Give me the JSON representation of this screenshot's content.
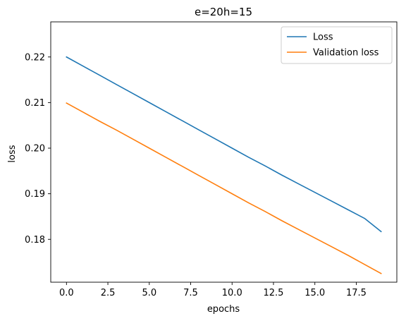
{
  "chart_data": {
    "type": "line",
    "title": "e=20h=15",
    "xlabel": "epochs",
    "ylabel": "loss",
    "xlim": [
      -0.95,
      19.95
    ],
    "ylim": [
      0.1706,
      0.2277
    ],
    "xticks": [
      0.0,
      2.5,
      5.0,
      7.5,
      10.0,
      12.5,
      15.0,
      17.5
    ],
    "xtick_labels": [
      "0.0",
      "2.5",
      "5.0",
      "7.5",
      "10.0",
      "12.5",
      "15.0",
      "17.5"
    ],
    "yticks": [
      0.18,
      0.19,
      0.2,
      0.21,
      0.22
    ],
    "ytick_labels": [
      "0.18",
      "0.19",
      "0.20",
      "0.21",
      "0.22"
    ],
    "grid": false,
    "legend_position": "top-right",
    "x": [
      0,
      1,
      2,
      3,
      4,
      5,
      6,
      7,
      8,
      9,
      10,
      11,
      12,
      13,
      14,
      15,
      16,
      17,
      18,
      19
    ],
    "series": [
      {
        "name": "Loss",
        "color": "#1f77b4",
        "values": [
          0.22,
          0.218,
          0.216,
          0.214,
          0.212,
          0.21,
          0.208,
          0.206,
          0.204,
          0.202,
          0.2,
          0.198,
          0.1961,
          0.1941,
          0.1922,
          0.1903,
          0.1884,
          0.1865,
          0.1846,
          0.1817
        ]
      },
      {
        "name": "Validation loss",
        "color": "#ff7f0e",
        "values": [
          0.2099,
          0.2079,
          0.2059,
          0.204,
          0.202,
          0.2,
          0.198,
          0.196,
          0.194,
          0.192,
          0.19,
          0.188,
          0.1861,
          0.1841,
          0.1822,
          0.1803,
          0.1784,
          0.1765,
          0.1745,
          0.1725
        ]
      }
    ]
  }
}
